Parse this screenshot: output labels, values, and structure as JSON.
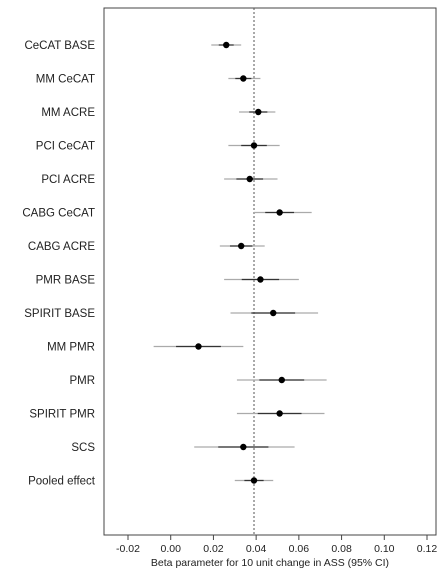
{
  "chart_data": {
    "type": "scatter",
    "subtype": "forest-plot",
    "title": "",
    "xlabel": "Beta parameter for 10 unit change in ASS (95% CI)",
    "ylabel": "",
    "xlim": [
      -0.02,
      0.12
    ],
    "xticks": [
      "-0.02",
      "0.00",
      "0.02",
      "0.04",
      "0.06",
      "0.08",
      "0.10",
      "0.12"
    ],
    "reference_line": 0.039,
    "grid": false,
    "legend": "none",
    "colors": {
      "point": "#000000",
      "ci_outer": "#aaaaaa",
      "ci_inner": "#333333",
      "reference": "#555555",
      "frame": "#444444"
    },
    "categories": [
      "CeCAT BASE",
      "MM CeCAT",
      "MM ACRE",
      "PCI CeCAT",
      "PCI ACRE",
      "CABG CeCAT",
      "CABG ACRE",
      "PMR BASE",
      "SPIRIT BASE",
      "MM PMR",
      "PMR",
      "SPIRIT PMR",
      "SCS",
      "Pooled effect"
    ],
    "estimates": [
      0.026,
      0.034,
      0.041,
      0.039,
      0.037,
      0.051,
      0.033,
      0.042,
      0.048,
      0.013,
      0.052,
      0.051,
      0.034,
      0.039
    ],
    "ci_lower": [
      0.019,
      0.027,
      0.032,
      0.027,
      0.025,
      0.039,
      0.023,
      0.025,
      0.028,
      -0.008,
      0.031,
      0.031,
      0.011,
      0.03
    ],
    "ci_upper": [
      0.033,
      0.042,
      0.049,
      0.051,
      0.05,
      0.066,
      0.044,
      0.06,
      0.069,
      0.034,
      0.073,
      0.072,
      0.058,
      0.048
    ]
  }
}
